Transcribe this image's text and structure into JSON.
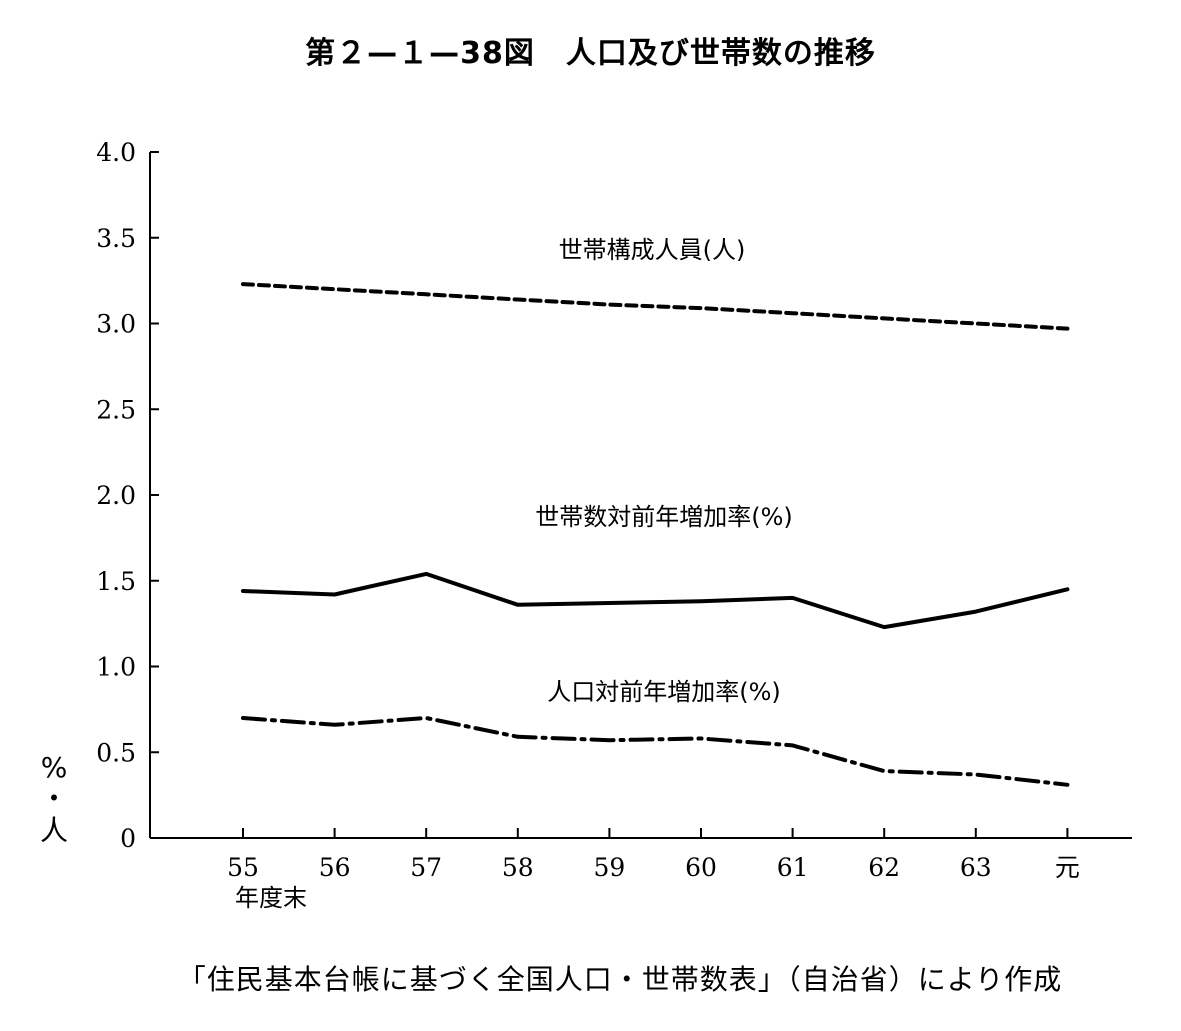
{
  "title": "第２—１—38図　人口及び世帯数の推移",
  "source": "「住民基本台帳に基づく全国人口・世帯数表」（自治省）により作成",
  "chart_data": {
    "type": "line",
    "categories": [
      "55",
      "56",
      "57",
      "58",
      "59",
      "60",
      "61",
      "62",
      "63",
      "元"
    ],
    "x_sublabel": "年度末",
    "ylabel": [
      "%",
      "・",
      "人"
    ],
    "ylim": [
      0,
      4.0
    ],
    "yticks": [
      0,
      0.5,
      1.0,
      1.5,
      2.0,
      2.5,
      3.0,
      3.5,
      4.0
    ],
    "ytick_labels": [
      "0",
      "0.5",
      "1.0",
      "1.5",
      "2.0",
      "2.5",
      "3.0",
      "3.5",
      "4.0"
    ],
    "grid": false,
    "legend": "inline labels",
    "series": [
      {
        "name": "世帯構成人員(人)",
        "line_style": "dashed",
        "values": [
          3.23,
          3.2,
          3.17,
          3.14,
          3.11,
          3.09,
          3.06,
          3.03,
          3.0,
          2.97
        ]
      },
      {
        "name": "世帯数対前年増加率(%)",
        "line_style": "solid",
        "values": [
          1.44,
          1.42,
          1.54,
          1.36,
          1.37,
          1.38,
          1.4,
          1.23,
          1.32,
          1.45
        ]
      },
      {
        "name": "人口対前年増加率(%)",
        "line_style": "dash-dot",
        "values": [
          0.7,
          0.66,
          0.7,
          0.59,
          0.57,
          0.58,
          0.54,
          0.39,
          0.37,
          0.31
        ]
      }
    ]
  }
}
